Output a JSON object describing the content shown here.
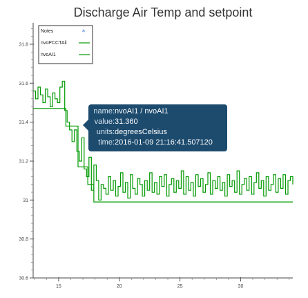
{
  "chart_data": {
    "type": "line",
    "title": "Discharge Air Temp and setpoint",
    "xlabel": "",
    "ylabel": "",
    "xlim": [
      12.9,
      34.3
    ],
    "ylim": [
      30.6,
      31.91
    ],
    "x_ticks": [
      15,
      20,
      25,
      30
    ],
    "x_tick_labels": [
      "15",
      "20",
      "25",
      "30"
    ],
    "y_ticks": [
      30.6,
      30.8,
      31.0,
      31.2,
      31.4,
      31.6,
      31.8
    ],
    "y_tick_labels": [
      "30.6",
      "30.8",
      "31",
      "31.2",
      "31.4",
      "31.6",
      "31.8"
    ],
    "grid": false,
    "legend": {
      "placement": "top-left",
      "entries": [
        {
          "label": "Notes",
          "marker": "*",
          "color": "#3b6fd6"
        },
        {
          "label": "nvoPCCTAli",
          "color": "#009a00"
        },
        {
          "label": "nvoAI1",
          "color": "#009a00"
        }
      ]
    },
    "series": [
      {
        "name": "nvoPCCTAli",
        "color": "#009a00",
        "step": true,
        "x": [
          12.9,
          15.0,
          15.6,
          16.6,
          17.4,
          17.9,
          34.3
        ],
        "y": [
          31.47,
          31.47,
          31.38,
          31.17,
          31.08,
          30.99,
          30.99
        ]
      },
      {
        "name": "nvoAI1",
        "color": "#009a00",
        "step": true,
        "x": [
          12.9,
          13.1,
          13.3,
          13.5,
          13.7,
          13.9,
          14.1,
          14.3,
          14.5,
          14.7,
          14.9,
          15.1,
          15.3,
          15.5,
          15.7,
          15.9,
          16.1,
          16.3,
          16.5,
          16.7,
          16.9,
          17.1,
          17.3,
          17.5,
          17.7,
          17.9,
          18.1,
          18.3,
          18.5,
          18.7,
          18.9,
          19.1,
          19.3,
          19.5,
          19.7,
          19.9,
          20.1,
          20.3,
          20.5,
          20.7,
          20.9,
          21.1,
          21.3,
          21.5,
          21.7,
          21.9,
          22.1,
          22.3,
          22.5,
          22.7,
          22.9,
          23.1,
          23.3,
          23.5,
          23.7,
          23.9,
          24.1,
          24.3,
          24.5,
          24.7,
          24.9,
          25.1,
          25.3,
          25.5,
          25.7,
          25.9,
          26.1,
          26.3,
          26.5,
          26.7,
          26.9,
          27.1,
          27.3,
          27.5,
          27.7,
          27.9,
          28.1,
          28.3,
          28.5,
          28.7,
          28.9,
          29.1,
          29.3,
          29.5,
          29.7,
          29.9,
          30.1,
          30.3,
          30.5,
          30.7,
          30.9,
          31.1,
          31.3,
          31.5,
          31.7,
          31.9,
          32.1,
          32.3,
          32.5,
          32.7,
          32.9,
          33.1,
          33.3,
          33.5,
          33.7,
          33.9,
          34.1,
          34.3
        ],
        "y": [
          31.56,
          31.52,
          31.58,
          31.54,
          31.5,
          31.57,
          31.53,
          31.48,
          31.55,
          31.52,
          31.5,
          31.58,
          31.61,
          31.46,
          31.4,
          31.36,
          31.3,
          31.36,
          31.25,
          31.2,
          31.32,
          31.16,
          31.12,
          31.22,
          31.05,
          31.18,
          31.1,
          31.0,
          31.08,
          31.06,
          31.03,
          31.12,
          31.05,
          31.1,
          31.02,
          31.07,
          31.14,
          31.04,
          31.09,
          31.01,
          31.13,
          31.06,
          31.03,
          31.11,
          31.08,
          31.02,
          31.1,
          31.05,
          31.14,
          31.04,
          31.09,
          31.03,
          31.12,
          31.07,
          31.13,
          31.02,
          31.08,
          31.11,
          31.04,
          31.1,
          31.06,
          31.15,
          31.03,
          31.12,
          31.05,
          31.09,
          31.02,
          31.13,
          31.07,
          31.11,
          31.04,
          31.08,
          31.14,
          31.03,
          31.1,
          31.06,
          31.12,
          31.05,
          31.09,
          31.02,
          31.13,
          31.07,
          31.1,
          31.04,
          31.15,
          31.03,
          31.08,
          31.11,
          31.05,
          31.12,
          31.03,
          31.09,
          31.14,
          31.06,
          31.1,
          31.02,
          31.12,
          31.05,
          31.08,
          31.13,
          31.04,
          31.11,
          31.06,
          31.13,
          31.03,
          31.1,
          31.12,
          31.08
        ]
      }
    ],
    "tooltip": {
      "rows": [
        {
          "key": "name:",
          "value": "nvoAI1 / nvoAI1"
        },
        {
          "key": "value:",
          "value": "31.360"
        },
        {
          "key": "units:",
          "value": "degreesCelsius"
        },
        {
          "key": "time:",
          "value": "2016-01-09 21:16:41.507120"
        }
      ]
    }
  }
}
